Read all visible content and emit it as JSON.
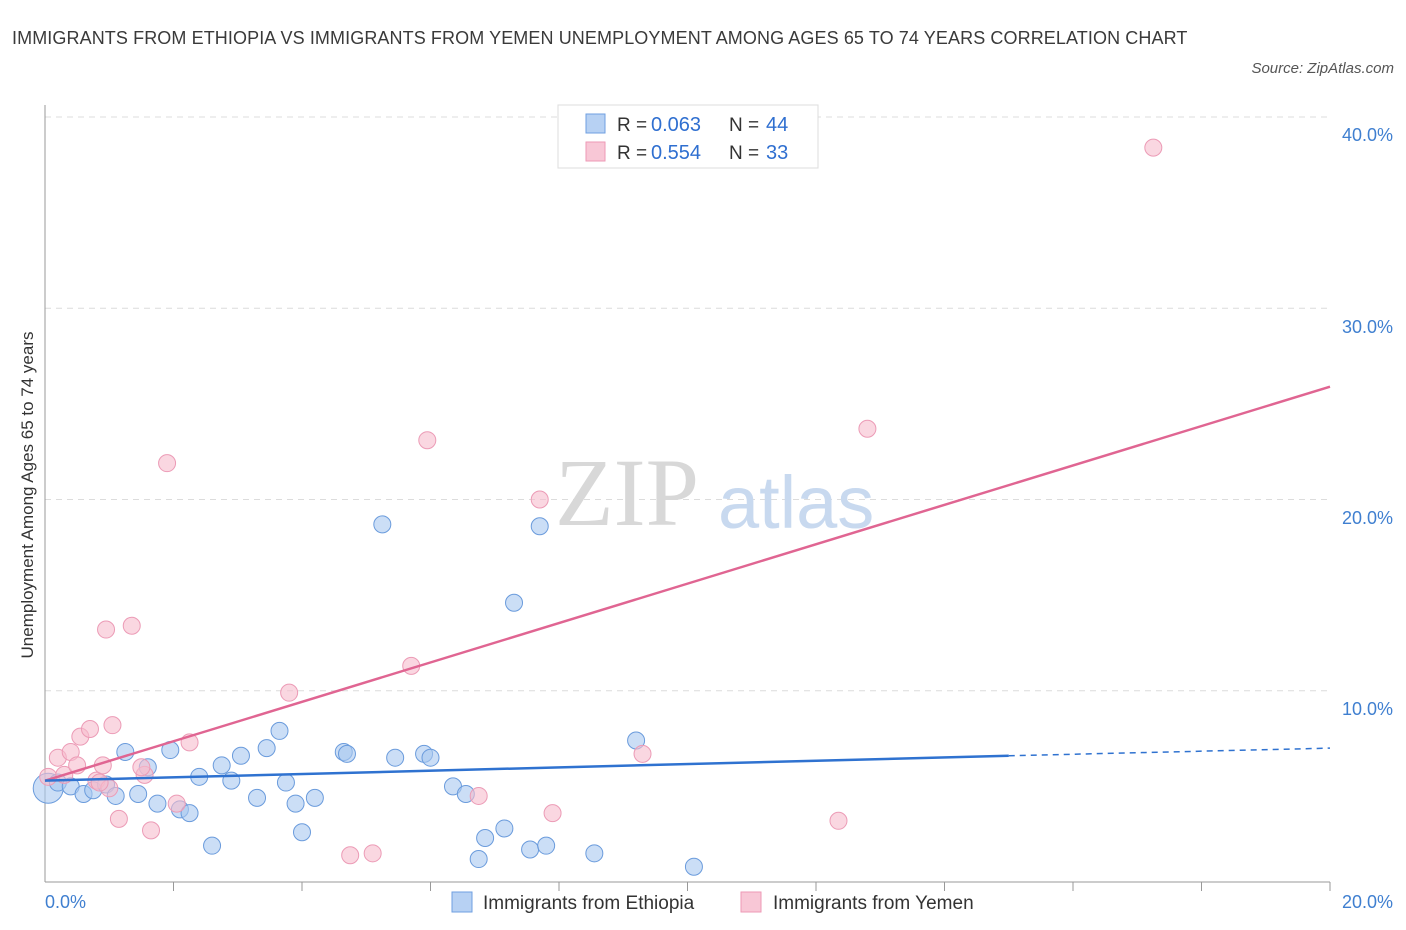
{
  "header": {
    "title": "IMMIGRANTS FROM ETHIOPIA VS IMMIGRANTS FROM YEMEN UNEMPLOYMENT AMONG AGES 65 TO 74 YEARS CORRELATION CHART",
    "source": "Source: ZipAtlas.com"
  },
  "colors": {
    "ethiopia_fill": "#a9c8f0",
    "ethiopia_line": "#2f72d0",
    "yemen_fill": "#f6bccd",
    "yemen_line": "#e06592",
    "tick_text": "#3f7fd0",
    "grid": "#dcdcdc"
  },
  "chart_data": {
    "type": "scatter",
    "title": "IMMIGRANTS FROM ETHIOPIA VS IMMIGRANTS FROM YEMEN UNEMPLOYMENT AMONG AGES 65 TO 74 YEARS CORRELATION CHART",
    "xlabel": "",
    "ylabel": "Unemployment Among Ages 65 to 74 years",
    "xlim": [
      0,
      20
    ],
    "ylim": [
      0,
      40
    ],
    "x_tick_labels": [
      "0.0%",
      "20.0%"
    ],
    "y_ticks": [
      10,
      20,
      30,
      40
    ],
    "y_tick_labels": [
      "10.0%",
      "20.0%",
      "30.0%",
      "40.0%"
    ],
    "grid": true,
    "watermark": "ZIPatlas",
    "stats": [
      {
        "series": "Immigrants from Ethiopia",
        "r_label": "R =",
        "r": "0.063",
        "n_label": "N =",
        "n": "44"
      },
      {
        "series": "Immigrants from Yemen",
        "r_label": "R =",
        "r": "0.554",
        "n_label": "N =",
        "n": "33"
      }
    ],
    "series": [
      {
        "name": "Immigrants from Ethiopia",
        "points": [
          [
            0.05,
            4.9
          ],
          [
            0.2,
            5.2
          ],
          [
            0.4,
            5.0
          ],
          [
            0.6,
            4.6
          ],
          [
            0.75,
            4.8
          ],
          [
            0.95,
            5.1
          ],
          [
            1.1,
            4.5
          ],
          [
            1.25,
            6.8
          ],
          [
            1.45,
            4.6
          ],
          [
            1.6,
            6.0
          ],
          [
            1.75,
            4.1
          ],
          [
            1.95,
            6.9
          ],
          [
            2.1,
            3.8
          ],
          [
            2.25,
            3.6
          ],
          [
            2.4,
            5.5
          ],
          [
            2.6,
            1.9
          ],
          [
            2.75,
            6.1
          ],
          [
            2.9,
            5.3
          ],
          [
            3.05,
            6.6
          ],
          [
            3.3,
            4.4
          ],
          [
            3.45,
            7.0
          ],
          [
            3.65,
            7.9
          ],
          [
            3.75,
            5.2
          ],
          [
            3.9,
            4.1
          ],
          [
            4.0,
            2.6
          ],
          [
            4.2,
            4.4
          ],
          [
            4.65,
            6.8
          ],
          [
            4.7,
            6.7
          ],
          [
            5.25,
            18.7
          ],
          [
            5.45,
            6.5
          ],
          [
            5.9,
            6.7
          ],
          [
            6.0,
            6.5
          ],
          [
            6.35,
            5.0
          ],
          [
            6.55,
            4.6
          ],
          [
            6.75,
            1.2
          ],
          [
            6.85,
            2.3
          ],
          [
            7.15,
            2.8
          ],
          [
            7.3,
            14.6
          ],
          [
            7.55,
            1.7
          ],
          [
            7.7,
            18.6
          ],
          [
            7.8,
            1.9
          ],
          [
            8.55,
            1.5
          ],
          [
            9.2,
            7.4
          ],
          [
            10.1,
            0.8
          ]
        ],
        "trend": {
          "x0": 0,
          "y0": 5.3,
          "x1": 15.0,
          "y1": 6.6,
          "dash_to_x": 20,
          "dash_to_y": 7.0
        }
      },
      {
        "name": "Immigrants from Yemen",
        "points": [
          [
            0.05,
            5.5
          ],
          [
            0.2,
            6.5
          ],
          [
            0.3,
            5.6
          ],
          [
            0.4,
            6.8
          ],
          [
            0.5,
            6.1
          ],
          [
            0.55,
            7.6
          ],
          [
            0.7,
            8.0
          ],
          [
            0.8,
            5.3
          ],
          [
            0.9,
            6.1
          ],
          [
            0.95,
            13.2
          ],
          [
            1.0,
            4.9
          ],
          [
            1.05,
            8.2
          ],
          [
            1.15,
            3.3
          ],
          [
            1.35,
            13.4
          ],
          [
            1.55,
            5.6
          ],
          [
            1.5,
            6.0
          ],
          [
            1.65,
            2.7
          ],
          [
            1.9,
            21.9
          ],
          [
            2.05,
            4.1
          ],
          [
            2.25,
            7.3
          ],
          [
            3.8,
            9.9
          ],
          [
            4.75,
            1.4
          ],
          [
            5.1,
            1.5
          ],
          [
            5.7,
            11.3
          ],
          [
            5.95,
            23.1
          ],
          [
            6.75,
            4.5
          ],
          [
            7.7,
            20.0
          ],
          [
            7.9,
            3.6
          ],
          [
            9.3,
            6.7
          ],
          [
            12.35,
            3.2
          ],
          [
            12.8,
            23.7
          ],
          [
            17.25,
            38.4
          ],
          [
            0.85,
            5.2
          ]
        ],
        "trend": {
          "x0": 0,
          "y0": 5.3,
          "x1": 20,
          "y1": 25.9
        }
      }
    ]
  },
  "legend_bottom": [
    {
      "label": "Immigrants from Ethiopia"
    },
    {
      "label": "Immigrants from Yemen"
    }
  ]
}
